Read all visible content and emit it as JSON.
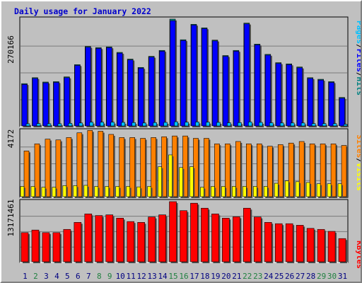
{
  "title": "Daily usage for January 2022",
  "colors": {
    "background": "#c0c0c0",
    "title": "#0000cc",
    "grid": "#7a7a7a",
    "pages": "#00c0ff",
    "files": "#0000ff",
    "hits": "#008080",
    "visits": "#ffff00",
    "sites": "#ff8000",
    "kbytes": "#ff0000",
    "weekend_day": "#208040",
    "weekday": "#000080",
    "label_dark": "#000000"
  },
  "y_axis_labels": {
    "hits": "270166",
    "sites": "4172",
    "kbytes": "13171461"
  },
  "legend": {
    "top": [
      "Pages",
      "/",
      "Files",
      "/",
      "Hits"
    ],
    "middle": [
      "Sites",
      "/",
      "Visits"
    ],
    "bottom": [
      "KBytes"
    ]
  },
  "chart_data": [
    {
      "type": "bar",
      "title": "Daily usage for January 2022",
      "panel": "hits",
      "categories": [
        "1",
        "2",
        "3",
        "4",
        "5",
        "6",
        "7",
        "8",
        "9",
        "10",
        "11",
        "12",
        "13",
        "14",
        "15",
        "16",
        "17",
        "18",
        "19",
        "20",
        "21",
        "22",
        "23",
        "24",
        "25",
        "26",
        "27",
        "28",
        "29",
        "30",
        "31"
      ],
      "weekend_days": [
        "2",
        "8",
        "9",
        "15",
        "16",
        "22",
        "23",
        "29",
        "30"
      ],
      "ylim": [
        0,
        270166
      ],
      "grid": true,
      "series": [
        {
          "name": "Hits",
          "values": [
            107000,
            122000,
            111000,
            112000,
            124000,
            155000,
            201000,
            198000,
            200000,
            186000,
            169000,
            148000,
            176000,
            191000,
            270166,
            218000,
            257000,
            248000,
            217000,
            178000,
            191000,
            260000,
            207000,
            181000,
            160000,
            157000,
            149000,
            122000,
            118000,
            112000,
            72000
          ]
        },
        {
          "name": "Files",
          "values": [
            105000,
            120000,
            109000,
            110000,
            122000,
            153000,
            199000,
            196000,
            198000,
            184000,
            167000,
            146000,
            174000,
            189000,
            266000,
            216000,
            255000,
            246000,
            215000,
            176000,
            189000,
            258000,
            205000,
            179000,
            158000,
            155000,
            147000,
            120000,
            116000,
            110000,
            70000
          ]
        },
        {
          "name": "Pages",
          "values": [
            5500,
            6000,
            5500,
            5500,
            6500,
            7500,
            9500,
            9500,
            9500,
            9000,
            8500,
            7500,
            8500,
            9000,
            10500,
            9500,
            10000,
            9500,
            9000,
            8000,
            8500,
            10000,
            9000,
            8000,
            7500,
            7500,
            7500,
            6000,
            6000,
            6000,
            4000
          ]
        }
      ]
    },
    {
      "type": "bar",
      "panel": "sites",
      "categories": [
        "1",
        "2",
        "3",
        "4",
        "5",
        "6",
        "7",
        "8",
        "9",
        "10",
        "11",
        "12",
        "13",
        "14",
        "15",
        "16",
        "17",
        "18",
        "19",
        "20",
        "21",
        "22",
        "23",
        "24",
        "25",
        "26",
        "27",
        "28",
        "29",
        "30",
        "31"
      ],
      "ylim": [
        0,
        4172
      ],
      "grid": true,
      "series": [
        {
          "name": "Sites",
          "values": [
            2900,
            3350,
            3650,
            3600,
            3750,
            4050,
            4200,
            4150,
            3950,
            3750,
            3750,
            3700,
            3750,
            3800,
            3850,
            3850,
            3700,
            3700,
            3350,
            3350,
            3500,
            3350,
            3350,
            3200,
            3300,
            3400,
            3500,
            3350,
            3350,
            3350,
            3250
          ]
        },
        {
          "name": "Visits",
          "values": [
            650,
            650,
            600,
            600,
            700,
            700,
            720,
            650,
            650,
            650,
            650,
            620,
            650,
            1900,
            2650,
            1850,
            1900,
            600,
            650,
            650,
            650,
            650,
            650,
            650,
            850,
            1000,
            950,
            900,
            820,
            820,
            820
          ]
        }
      ]
    },
    {
      "type": "bar",
      "panel": "kbytes",
      "categories": [
        "1",
        "2",
        "3",
        "4",
        "5",
        "6",
        "7",
        "8",
        "9",
        "10",
        "11",
        "12",
        "13",
        "14",
        "15",
        "16",
        "17",
        "18",
        "19",
        "20",
        "21",
        "22",
        "23",
        "24",
        "25",
        "26",
        "27",
        "28",
        "29",
        "30",
        "31"
      ],
      "ylim": [
        0,
        13171461
      ],
      "grid": true,
      "series": [
        {
          "name": "KBytes",
          "values": [
            6380000,
            6950000,
            6380000,
            6380000,
            7090000,
            8630000,
            10480000,
            10130000,
            10280000,
            9560000,
            8810000,
            8630000,
            9810000,
            10280000,
            13171461,
            11200000,
            12830000,
            11740000,
            10480000,
            9560000,
            9850000,
            11740000,
            9810000,
            8630000,
            8340000,
            8340000,
            8000000,
            7320000,
            7090000,
            6660000,
            5080000
          ]
        }
      ]
    }
  ]
}
